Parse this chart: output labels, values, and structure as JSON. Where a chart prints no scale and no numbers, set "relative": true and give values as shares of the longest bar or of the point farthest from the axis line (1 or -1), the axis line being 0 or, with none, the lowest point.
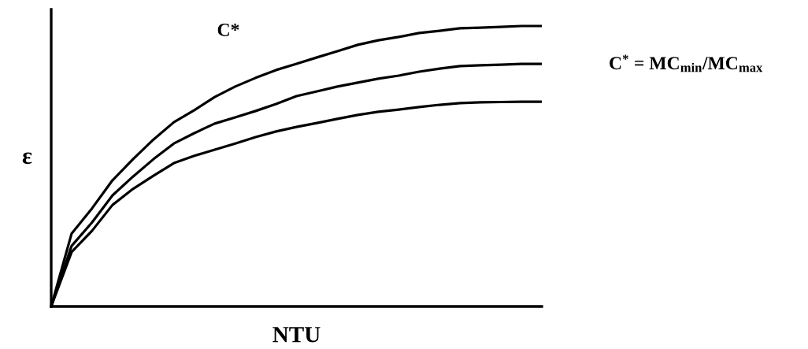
{
  "chart_data": {
    "type": "line",
    "relative": true,
    "xlabel": "NTU",
    "ylabel": "ε",
    "categories": [
      null,
      null,
      null,
      null,
      null,
      null,
      null,
      null,
      null,
      null,
      null,
      null,
      null,
      null,
      null,
      null,
      null,
      null,
      null,
      null,
      null,
      null,
      null,
      null,
      null
    ],
    "series": [
      {
        "color": "#000000",
        "values": [
          0,
          0.26,
          0.35,
          0.45,
          0.525,
          0.595,
          0.657,
          0.7,
          0.747,
          0.784,
          0.815,
          0.843,
          0.865,
          0.888,
          0.91,
          0.933,
          0.949,
          0.961,
          0.975,
          0.983,
          0.992,
          0.994,
          0.997,
          1,
          1
        ]
      },
      {
        "color": "#000000",
        "values": [
          0,
          0.216,
          0.3,
          0.396,
          0.463,
          0.525,
          0.581,
          0.618,
          0.652,
          0.674,
          0.697,
          0.722,
          0.75,
          0.767,
          0.784,
          0.798,
          0.812,
          0.823,
          0.837,
          0.848,
          0.857,
          0.86,
          0.862,
          0.865,
          0.865
        ]
      },
      {
        "color": "#000000",
        "values": [
          0,
          0.194,
          0.27,
          0.362,
          0.419,
          0.466,
          0.511,
          0.537,
          0.559,
          0.581,
          0.604,
          0.624,
          0.64,
          0.654,
          0.669,
          0.683,
          0.694,
          0.702,
          0.711,
          0.719,
          0.725,
          0.728,
          0.729,
          0.73,
          0.73
        ]
      }
    ],
    "annotations": [
      "C*",
      "C$^{*}$ = MC$_{min}$/MC$_{max}$"
    ],
    "grid": false,
    "marker": "none",
    "line_style": "solid"
  }
}
